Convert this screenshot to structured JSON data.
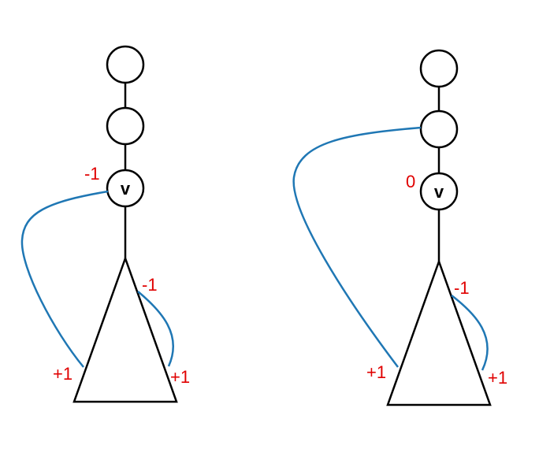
{
  "colors": {
    "curve": "#1f77b4",
    "label": "#e00000",
    "line": "#000000"
  },
  "left": {
    "vertex_label": "v",
    "label_v": "-1",
    "label_subtree_right_top": "-1",
    "label_subtree_left_bottom": "+1",
    "label_subtree_right_bottom": "+1"
  },
  "right": {
    "vertex_label": "v",
    "label_v": "0",
    "label_subtree_right_top": "-1",
    "label_subtree_left_bottom": "+1",
    "label_subtree_right_bottom": "+1"
  }
}
